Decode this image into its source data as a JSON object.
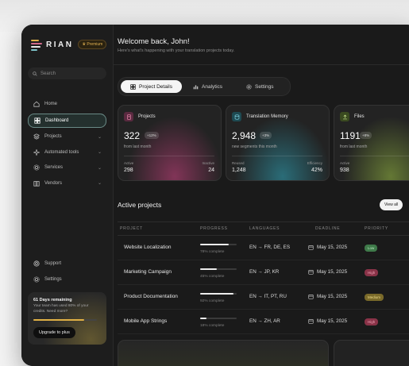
{
  "app": {
    "logo_text": "RIAN",
    "premium_badge": "Premium"
  },
  "sidebar": {
    "search_placeholder": "Search",
    "items": [
      {
        "label": "Home",
        "icon": "home-icon",
        "active": false,
        "chevron": false
      },
      {
        "label": "Dashboard",
        "icon": "dashboard-icon",
        "active": true,
        "chevron": false
      },
      {
        "label": "Projects",
        "icon": "layers-icon",
        "active": false,
        "chevron": true
      },
      {
        "label": "Automated tools",
        "icon": "sparkle-icon",
        "active": false,
        "chevron": true
      },
      {
        "label": "Services",
        "icon": "gear-icon",
        "active": false,
        "chevron": true
      },
      {
        "label": "Vendors",
        "icon": "building-icon",
        "active": false,
        "chevron": true
      }
    ],
    "bottom_items": [
      {
        "label": "Support",
        "icon": "support-icon"
      },
      {
        "label": "Settings",
        "icon": "settings-icon"
      }
    ],
    "trial": {
      "title": "61 Days remaining",
      "text": "Your team has used 80% of your credits. Need more?",
      "progress": 0.8,
      "button": "Upgrade to plus"
    }
  },
  "header": {
    "welcome": "Welcome back, John!",
    "subtitle": "Here's what's happening with your translation projects today."
  },
  "tabs": [
    {
      "label": "Project Details",
      "icon": "grid-icon",
      "active": true
    },
    {
      "label": "Analytics",
      "icon": "bar-chart-icon",
      "active": false
    },
    {
      "label": "Settings",
      "icon": "gear-icon",
      "active": false
    }
  ],
  "cards": [
    {
      "title": "Projects",
      "icon": "projects-icon",
      "value": "322",
      "badge": "+12%",
      "sub": "from last month",
      "left_label": "Active",
      "left_value": "298",
      "right_label": "Inactive",
      "right_value": "24",
      "accent": "#c0407a"
    },
    {
      "title": "Translation Memory",
      "icon": "database-icon",
      "value": "2,948",
      "badge": "+3%",
      "sub": "new segments this month",
      "left_label": "Reused",
      "left_value": "1,248",
      "right_label": "Efficiency",
      "right_value": "42%",
      "accent": "#2f9db0"
    },
    {
      "title": "Files",
      "icon": "upload-icon",
      "value": "1191",
      "badge": "+8%",
      "sub": "from last month",
      "left_label": "Active",
      "left_value": "938",
      "right_label": "",
      "right_value": "",
      "accent": "#8fb040"
    }
  ],
  "projects_section": {
    "title": "Active projects",
    "view_all": "View all",
    "columns": [
      "PROJECT",
      "PROGRESS",
      "LANGUAGES",
      "DEADLINE",
      "PRIORITY"
    ],
    "rows": [
      {
        "name": "Website Localization",
        "progress": 0.78,
        "progress_text": "78% complete",
        "languages": "EN → FR, DE, ES",
        "deadline": "May 15, 2025",
        "priority": "Low"
      },
      {
        "name": "Marketing Campaign",
        "progress": 0.45,
        "progress_text": "45% complete",
        "languages": "EN → JP, KR",
        "deadline": "May 15, 2025",
        "priority": "High"
      },
      {
        "name": "Product Documentation",
        "progress": 0.92,
        "progress_text": "92% complete",
        "languages": "EN → IT, PT, RU",
        "deadline": "May 15, 2025",
        "priority": "Medium"
      },
      {
        "name": "Mobile App Strings",
        "progress": 0.18,
        "progress_text": "18% complete",
        "languages": "EN → ZH, AR",
        "deadline": "May 15, 2025",
        "priority": "High"
      }
    ]
  },
  "colors": {
    "priority_low": "#3f7a4a",
    "priority_high": "#8a3348",
    "priority_medium": "#7a6a2a",
    "gold": "#e0b045"
  }
}
